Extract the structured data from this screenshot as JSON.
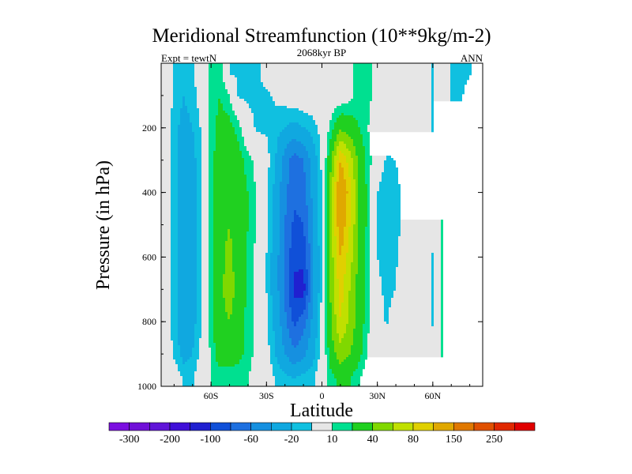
{
  "chart_data": {
    "type": "heatmap",
    "subtype": "filled-contour",
    "title": "Meridional Streamfunction (10**9kg/m-2)",
    "left_string": "Expt = tewtN",
    "center_string": "2068kyr BP",
    "right_string": "ANN",
    "xlabel": "Latitude",
    "ylabel": "Pressure (in hPa)",
    "xlim": [
      -87,
      87
    ],
    "ylim": [
      0,
      1000
    ],
    "y_reversed": true,
    "x_ticks": [
      {
        "value": -60,
        "label": "60S"
      },
      {
        "value": -30,
        "label": "30S"
      },
      {
        "value": 0,
        "label": "0"
      },
      {
        "value": 30,
        "label": "30N"
      },
      {
        "value": 60,
        "label": "60N"
      }
    ],
    "y_ticks": [
      {
        "value": 200,
        "label": "200"
      },
      {
        "value": 400,
        "label": "400"
      },
      {
        "value": 600,
        "label": "600"
      },
      {
        "value": 800,
        "label": "800"
      },
      {
        "value": 1000,
        "label": "1000"
      }
    ],
    "lat": [
      -85,
      -80,
      -75,
      -70,
      -65,
      -60,
      -55,
      -50,
      -45,
      -40,
      -35,
      -30,
      -25,
      -20,
      -15,
      -10,
      -5,
      0,
      5,
      10,
      15,
      20,
      25,
      30,
      35,
      40,
      45,
      50,
      55,
      60,
      65,
      70,
      75,
      80,
      85
    ],
    "pressure": [
      25,
      100,
      200,
      300,
      400,
      500,
      600,
      700,
      800,
      900,
      975
    ],
    "values": [
      [
        0,
        -12,
        -15,
        -12,
        0,
        15,
        15,
        -12,
        -12,
        -12,
        -12,
        -5,
        0,
        0,
        0,
        0,
        0,
        0,
        0,
        0,
        5,
        15,
        15,
        0,
        0,
        0,
        0,
        0,
        0,
        -12,
        0,
        -12,
        -12,
        -12,
        0
      ],
      [
        0,
        -12,
        -20,
        -15,
        -3,
        15,
        20,
        10,
        -12,
        -12,
        -12,
        -12,
        -8,
        -5,
        0,
        0,
        0,
        0,
        0,
        0,
        5,
        15,
        15,
        0,
        0,
        0,
        0,
        0,
        0,
        -12,
        0,
        -12,
        -12,
        -5,
        0
      ],
      [
        0,
        -15,
        -25,
        -20,
        -8,
        15,
        25,
        25,
        15,
        -5,
        -12,
        -12,
        -15,
        -20,
        -25,
        -20,
        -15,
        -5,
        15,
        35,
        30,
        20,
        10,
        0,
        0,
        0,
        0,
        0,
        0,
        -12,
        0,
        0,
        0,
        0,
        0
      ],
      [
        0,
        -15,
        -30,
        -25,
        -10,
        15,
        30,
        30,
        25,
        15,
        5,
        -5,
        -20,
        -50,
        -70,
        -60,
        -30,
        -8,
        35,
        100,
        70,
        35,
        15,
        0,
        -12,
        -10,
        0,
        0,
        0,
        0,
        0,
        0,
        0,
        0,
        0
      ],
      [
        0,
        -15,
        -30,
        -25,
        -10,
        15,
        30,
        35,
        30,
        20,
        8,
        -8,
        -25,
        -55,
        -75,
        -70,
        -35,
        -8,
        55,
        130,
        90,
        40,
        15,
        -10,
        -20,
        -15,
        -5,
        0,
        0,
        0,
        0,
        0,
        0,
        0,
        0
      ],
      [
        0,
        -15,
        -30,
        -25,
        -10,
        15,
        35,
        40,
        30,
        20,
        8,
        -8,
        -25,
        -60,
        -85,
        -80,
        -40,
        -8,
        55,
        120,
        80,
        40,
        15,
        -10,
        -20,
        -15,
        -5,
        0,
        0,
        0,
        12,
        0,
        0,
        0,
        0
      ],
      [
        0,
        -15,
        -30,
        -25,
        -10,
        15,
        35,
        45,
        30,
        18,
        6,
        -10,
        -30,
        -65,
        -95,
        -95,
        -45,
        -8,
        50,
        100,
        70,
        35,
        12,
        -10,
        -18,
        -12,
        0,
        0,
        0,
        -12,
        12,
        0,
        0,
        0,
        0
      ],
      [
        0,
        -15,
        -30,
        -25,
        -10,
        15,
        35,
        50,
        30,
        18,
        6,
        -10,
        -30,
        -65,
        -105,
        -110,
        -45,
        -8,
        45,
        90,
        60,
        30,
        12,
        -5,
        -15,
        -10,
        0,
        0,
        0,
        -12,
        12,
        0,
        0,
        0,
        0
      ],
      [
        0,
        -15,
        -30,
        -25,
        -10,
        15,
        35,
        40,
        28,
        15,
        5,
        -8,
        -25,
        -55,
        -85,
        -70,
        -35,
        -6,
        40,
        80,
        55,
        30,
        12,
        0,
        -12,
        0,
        0,
        0,
        0,
        -12,
        12,
        0,
        0,
        0,
        0
      ],
      [
        0,
        -12,
        -25,
        -20,
        -5,
        12,
        30,
        30,
        25,
        15,
        5,
        -5,
        -20,
        -40,
        -55,
        -45,
        -25,
        -5,
        30,
        50,
        40,
        25,
        8,
        0,
        0,
        0,
        0,
        0,
        0,
        0,
        12,
        0,
        0,
        0,
        0
      ],
      [
        0,
        0,
        -12,
        -12,
        0,
        10,
        12,
        12,
        12,
        10,
        5,
        0,
        -12,
        -15,
        -20,
        -15,
        -12,
        0,
        15,
        25,
        20,
        12,
        0,
        0,
        0,
        0,
        0,
        0,
        0,
        0,
        0,
        0,
        0,
        0,
        0
      ]
    ],
    "levels": [
      -300,
      -250,
      -200,
      -150,
      -100,
      -80,
      -60,
      -40,
      -20,
      -10,
      10,
      20,
      40,
      60,
      80,
      100,
      150,
      200,
      250,
      300
    ],
    "colorbar_labels": [
      "-300",
      "-200",
      "-100",
      "-60",
      "-20",
      "10",
      "40",
      "80",
      "150",
      "250"
    ],
    "colors": [
      "#7B0FE0",
      "#7010D8",
      "#6015D8",
      "#4010D8",
      "#2020D0",
      "#1050D8",
      "#1E70E0",
      "#1690E0",
      "#10A8E0",
      "#10C0E0",
      "#E6E6E6",
      "#00E090",
      "#20D020",
      "#80D800",
      "#C0E000",
      "#E0D000",
      "#E0A800",
      "#E07800",
      "#E05000",
      "#E02800",
      "#E00000"
    ],
    "colorbar_placement": "bottom"
  }
}
